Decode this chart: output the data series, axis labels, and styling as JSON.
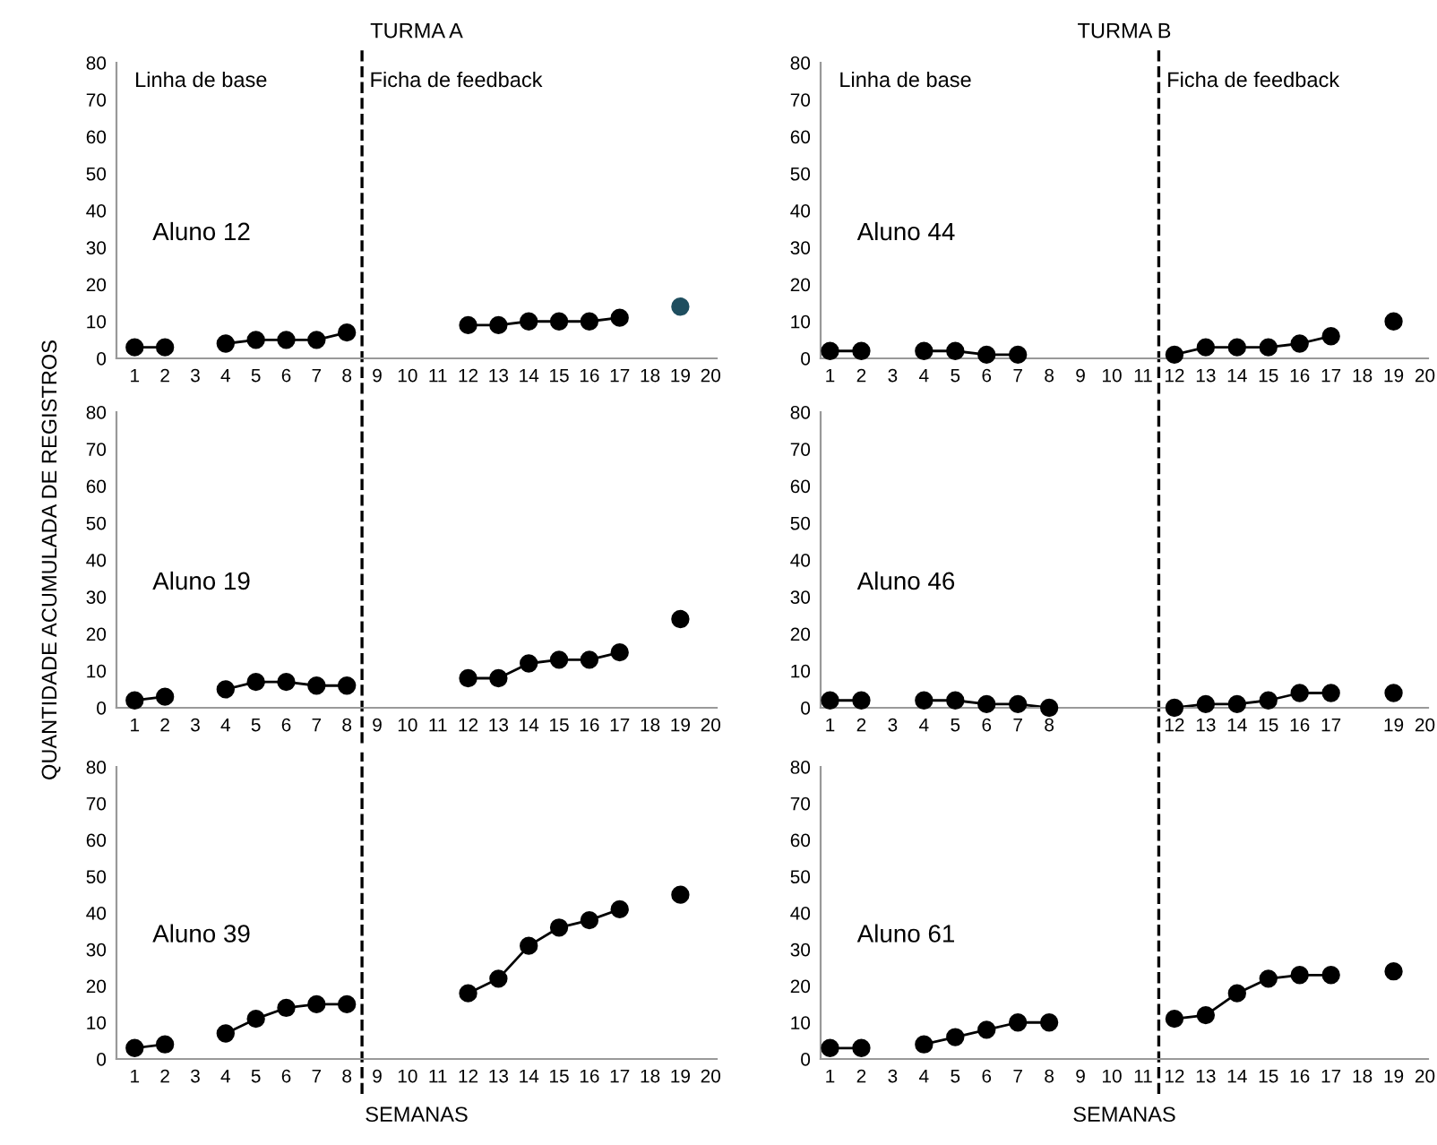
{
  "chart_data": [
    {
      "type": "line",
      "title": "TURMA A",
      "x": [
        1,
        2,
        3,
        4,
        5,
        6,
        7,
        8,
        9,
        10,
        11,
        12,
        13,
        14,
        15,
        16,
        17,
        18,
        19
      ],
      "xlim": [
        0.4,
        20.2
      ],
      "xticks": [
        1,
        2,
        3,
        4,
        5,
        6,
        7,
        8,
        9,
        10,
        11,
        12,
        13,
        14,
        15,
        16,
        17,
        18,
        19,
        20
      ],
      "ylim": [
        0,
        80
      ],
      "yticks": [
        0,
        10,
        20,
        30,
        40,
        50,
        60,
        70,
        80
      ],
      "marker": "circle",
      "line_style": "solid",
      "ref_lines": [
        {
          "axis": "x",
          "value": 8.5,
          "line_style": "dashed",
          "color": "#000000"
        }
      ],
      "annotations": [
        "Linha de base",
        "Ficha de feedback"
      ],
      "series": [
        {
          "name": "Aluno 12",
          "color": "#000000",
          "colors": [
            "#000000",
            "#000000",
            null,
            "#000000",
            "#000000",
            "#000000",
            "#000000",
            "#000000",
            null,
            null,
            null,
            "#000000",
            "#000000",
            "#000000",
            "#000000",
            "#000000",
            "#000000",
            null,
            "#1f4e5f"
          ],
          "values": [
            3,
            3,
            null,
            4,
            5,
            5,
            5,
            7,
            null,
            null,
            null,
            9,
            9,
            10,
            10,
            10,
            11,
            null,
            14
          ]
        }
      ]
    },
    {
      "type": "line",
      "title": "TURMA B",
      "x": [
        1,
        2,
        3,
        4,
        5,
        6,
        7,
        8,
        9,
        10,
        11,
        12,
        13,
        14,
        15,
        16,
        17,
        18,
        19
      ],
      "xlim": [
        0.7,
        20.1
      ],
      "xticks": [
        1,
        2,
        3,
        4,
        5,
        6,
        7,
        8,
        9,
        10,
        11,
        12,
        13,
        14,
        15,
        16,
        17,
        18,
        19,
        20
      ],
      "ylim": [
        0,
        80
      ],
      "yticks": [
        0,
        10,
        20,
        30,
        40,
        50,
        60,
        70,
        80
      ],
      "marker": "circle",
      "line_style": "solid",
      "ref_lines": [
        {
          "axis": "x",
          "value": 11.5,
          "line_style": "dashed",
          "color": "#000000"
        }
      ],
      "annotations": [
        "Linha de base",
        "Ficha de feedback"
      ],
      "series": [
        {
          "name": "Aluno 44",
          "color": "#000000",
          "values": [
            2,
            2,
            null,
            2,
            2,
            1,
            1,
            null,
            null,
            null,
            null,
            1,
            3,
            3,
            3,
            4,
            6,
            null,
            10
          ]
        }
      ]
    },
    {
      "type": "line",
      "x": [
        1,
        2,
        3,
        4,
        5,
        6,
        7,
        8,
        9,
        10,
        11,
        12,
        13,
        14,
        15,
        16,
        17,
        18,
        19
      ],
      "xlim": [
        0.4,
        20.2
      ],
      "xticks": [
        1,
        2,
        3,
        4,
        5,
        6,
        7,
        8,
        9,
        10,
        11,
        12,
        13,
        14,
        15,
        16,
        17,
        18,
        19,
        20
      ],
      "ylim": [
        0,
        80
      ],
      "yticks": [
        0,
        10,
        20,
        30,
        40,
        50,
        60,
        70,
        80
      ],
      "ylabel": "QUANTIDADE ACUMULADA DE REGISTROS",
      "marker": "circle",
      "line_style": "solid",
      "ref_lines": [
        {
          "axis": "x",
          "value": 8.5,
          "line_style": "dashed",
          "color": "#000000"
        }
      ],
      "series": [
        {
          "name": "Aluno 19",
          "color": "#000000",
          "values": [
            2,
            3,
            null,
            5,
            7,
            7,
            6,
            6,
            null,
            null,
            null,
            8,
            8,
            12,
            13,
            13,
            15,
            null,
            24
          ]
        }
      ]
    },
    {
      "type": "line",
      "x": [
        1,
        2,
        3,
        4,
        5,
        6,
        7,
        8,
        9,
        10,
        11,
        12,
        13,
        14,
        15,
        16,
        17,
        18,
        19
      ],
      "xlim": [
        0.7,
        20.1
      ],
      "xticks": [
        1,
        2,
        3,
        4,
        5,
        6,
        7,
        8,
        12,
        13,
        14,
        15,
        16,
        17,
        19,
        20
      ],
      "ylim": [
        0,
        80
      ],
      "yticks": [
        0,
        10,
        20,
        30,
        40,
        50,
        60,
        70,
        80
      ],
      "marker": "circle",
      "line_style": "solid",
      "ref_lines": [
        {
          "axis": "x",
          "value": 11.5,
          "line_style": "dashed",
          "color": "#000000"
        }
      ],
      "series": [
        {
          "name": "Aluno 46",
          "color": "#000000",
          "values": [
            2,
            2,
            null,
            2,
            2,
            1,
            1,
            0,
            null,
            null,
            null,
            0,
            1,
            1,
            2,
            4,
            4,
            null,
            4
          ]
        }
      ]
    },
    {
      "type": "line",
      "x": [
        1,
        2,
        3,
        4,
        5,
        6,
        7,
        8,
        9,
        10,
        11,
        12,
        13,
        14,
        15,
        16,
        17,
        18,
        19
      ],
      "xlim": [
        0.4,
        20.2
      ],
      "xticks": [
        1,
        2,
        3,
        4,
        5,
        6,
        7,
        8,
        9,
        10,
        11,
        12,
        13,
        14,
        15,
        16,
        17,
        18,
        19,
        20
      ],
      "ylim": [
        0,
        80
      ],
      "yticks": [
        0,
        10,
        20,
        30,
        40,
        50,
        60,
        70,
        80
      ],
      "xlabel": "SEMANAS",
      "marker": "circle",
      "line_style": "solid",
      "ref_lines": [
        {
          "axis": "x",
          "value": 8.5,
          "line_style": "dashed",
          "color": "#000000"
        }
      ],
      "series": [
        {
          "name": "Aluno 39",
          "color": "#000000",
          "values": [
            3,
            4,
            null,
            7,
            11,
            14,
            15,
            15,
            null,
            null,
            null,
            18,
            22,
            31,
            36,
            38,
            41,
            null,
            45
          ]
        }
      ]
    },
    {
      "type": "line",
      "x": [
        1,
        2,
        3,
        4,
        5,
        6,
        7,
        8,
        9,
        10,
        11,
        12,
        13,
        14,
        15,
        16,
        17,
        18,
        19
      ],
      "xlim": [
        0.7,
        20.1
      ],
      "xticks": [
        1,
        2,
        3,
        4,
        5,
        6,
        7,
        8,
        9,
        10,
        11,
        12,
        13,
        14,
        15,
        16,
        17,
        18,
        19,
        20
      ],
      "ylim": [
        0,
        80
      ],
      "yticks": [
        0,
        10,
        20,
        30,
        40,
        50,
        60,
        70,
        80
      ],
      "xlabel": "SEMANAS",
      "marker": "circle",
      "line_style": "solid",
      "ref_lines": [
        {
          "axis": "x",
          "value": 11.5,
          "line_style": "dashed",
          "color": "#000000"
        }
      ],
      "series": [
        {
          "name": "Aluno 61",
          "color": "#000000",
          "values": [
            3,
            3,
            null,
            4,
            6,
            8,
            10,
            10,
            null,
            null,
            null,
            11,
            12,
            18,
            22,
            23,
            23,
            null,
            24
          ]
        }
      ]
    }
  ]
}
